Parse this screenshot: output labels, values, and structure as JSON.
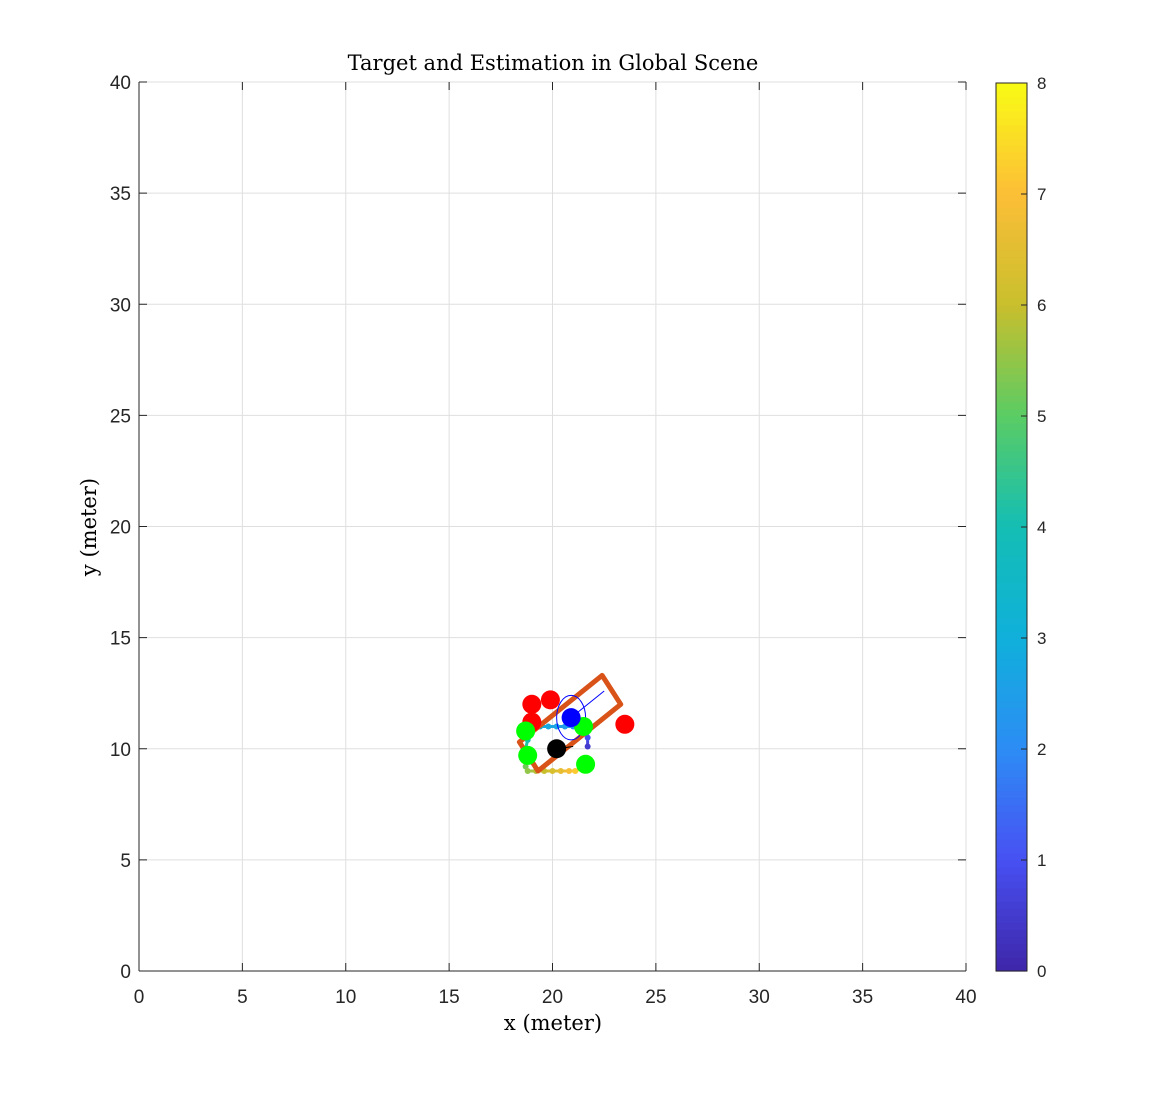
{
  "chart_data": {
    "type": "scatter",
    "title": "Target and Estimation in Global Scene",
    "xlabel": "x (meter)",
    "ylabel": "y (meter)",
    "xlim": [
      0,
      40
    ],
    "ylim": [
      0,
      40
    ],
    "xticks": [
      "0",
      "5",
      "10",
      "15",
      "20",
      "25",
      "30",
      "35",
      "40"
    ],
    "yticks": [
      "0",
      "5",
      "10",
      "15",
      "20",
      "25",
      "30",
      "35",
      "40"
    ],
    "grid": true,
    "colorbar": {
      "range": [
        0,
        8
      ],
      "ticks": [
        "0",
        "1",
        "2",
        "3",
        "4",
        "5",
        "6",
        "7",
        "8"
      ],
      "colormap": "parula"
    },
    "colors": {
      "red_points": "#ff0000",
      "green_points": "#00ff00",
      "blue_point": "#0000ff",
      "black_point": "#000000",
      "rectangle": "#d95319",
      "ellipse": "#0000ff"
    },
    "red_points": [
      {
        "x": 19.0,
        "y": 12.0
      },
      {
        "x": 19.9,
        "y": 12.2
      },
      {
        "x": 19.0,
        "y": 11.2
      },
      {
        "x": 23.5,
        "y": 11.1
      }
    ],
    "green_points": [
      {
        "x": 18.7,
        "y": 10.8
      },
      {
        "x": 21.5,
        "y": 11.0
      },
      {
        "x": 18.8,
        "y": 9.7
      },
      {
        "x": 21.6,
        "y": 9.3
      }
    ],
    "blue_point": {
      "x": 20.9,
      "y": 11.4
    },
    "black_point": {
      "x": 20.2,
      "y": 10.0
    },
    "black_heading_end": {
      "x": 21.0,
      "y": 10.1
    },
    "rectangle_corners": [
      {
        "x": 19.3,
        "y": 9.0
      },
      {
        "x": 23.3,
        "y": 12.0
      },
      {
        "x": 22.4,
        "y": 13.3
      },
      {
        "x": 18.4,
        "y": 10.3
      }
    ],
    "ellipse": {
      "cx": 20.9,
      "cy": 11.4,
      "rx": 0.7,
      "ry": 1.0
    },
    "ellipse_heading_end": {
      "x": 22.5,
      "y": 12.6
    },
    "trajectory": [
      {
        "x": 21.7,
        "y": 10.1,
        "t": 0.5
      },
      {
        "x": 21.7,
        "y": 10.5,
        "t": 1.0
      },
      {
        "x": 21.7,
        "y": 10.9,
        "t": 1.5
      },
      {
        "x": 21.4,
        "y": 11.0,
        "t": 2.0
      },
      {
        "x": 21.0,
        "y": 11.0,
        "t": 2.2
      },
      {
        "x": 20.6,
        "y": 11.0,
        "t": 2.4
      },
      {
        "x": 20.2,
        "y": 11.0,
        "t": 2.6
      },
      {
        "x": 19.8,
        "y": 11.0,
        "t": 2.8
      },
      {
        "x": 19.4,
        "y": 11.0,
        "t": 3.0
      },
      {
        "x": 19.1,
        "y": 11.0,
        "t": 3.2
      },
      {
        "x": 18.9,
        "y": 10.8,
        "t": 3.6
      },
      {
        "x": 18.8,
        "y": 10.4,
        "t": 4.0
      },
      {
        "x": 18.7,
        "y": 10.0,
        "t": 4.4
      },
      {
        "x": 18.7,
        "y": 9.6,
        "t": 4.8
      },
      {
        "x": 18.7,
        "y": 9.2,
        "t": 5.2
      },
      {
        "x": 18.8,
        "y": 9.0,
        "t": 5.5
      },
      {
        "x": 19.2,
        "y": 9.0,
        "t": 5.8
      },
      {
        "x": 19.6,
        "y": 9.0,
        "t": 6.0
      },
      {
        "x": 20.0,
        "y": 9.0,
        "t": 6.3
      },
      {
        "x": 20.4,
        "y": 9.0,
        "t": 6.6
      },
      {
        "x": 20.8,
        "y": 9.0,
        "t": 6.9
      },
      {
        "x": 21.1,
        "y": 9.0,
        "t": 7.2
      },
      {
        "x": 21.4,
        "y": 9.1,
        "t": 7.4
      }
    ]
  }
}
